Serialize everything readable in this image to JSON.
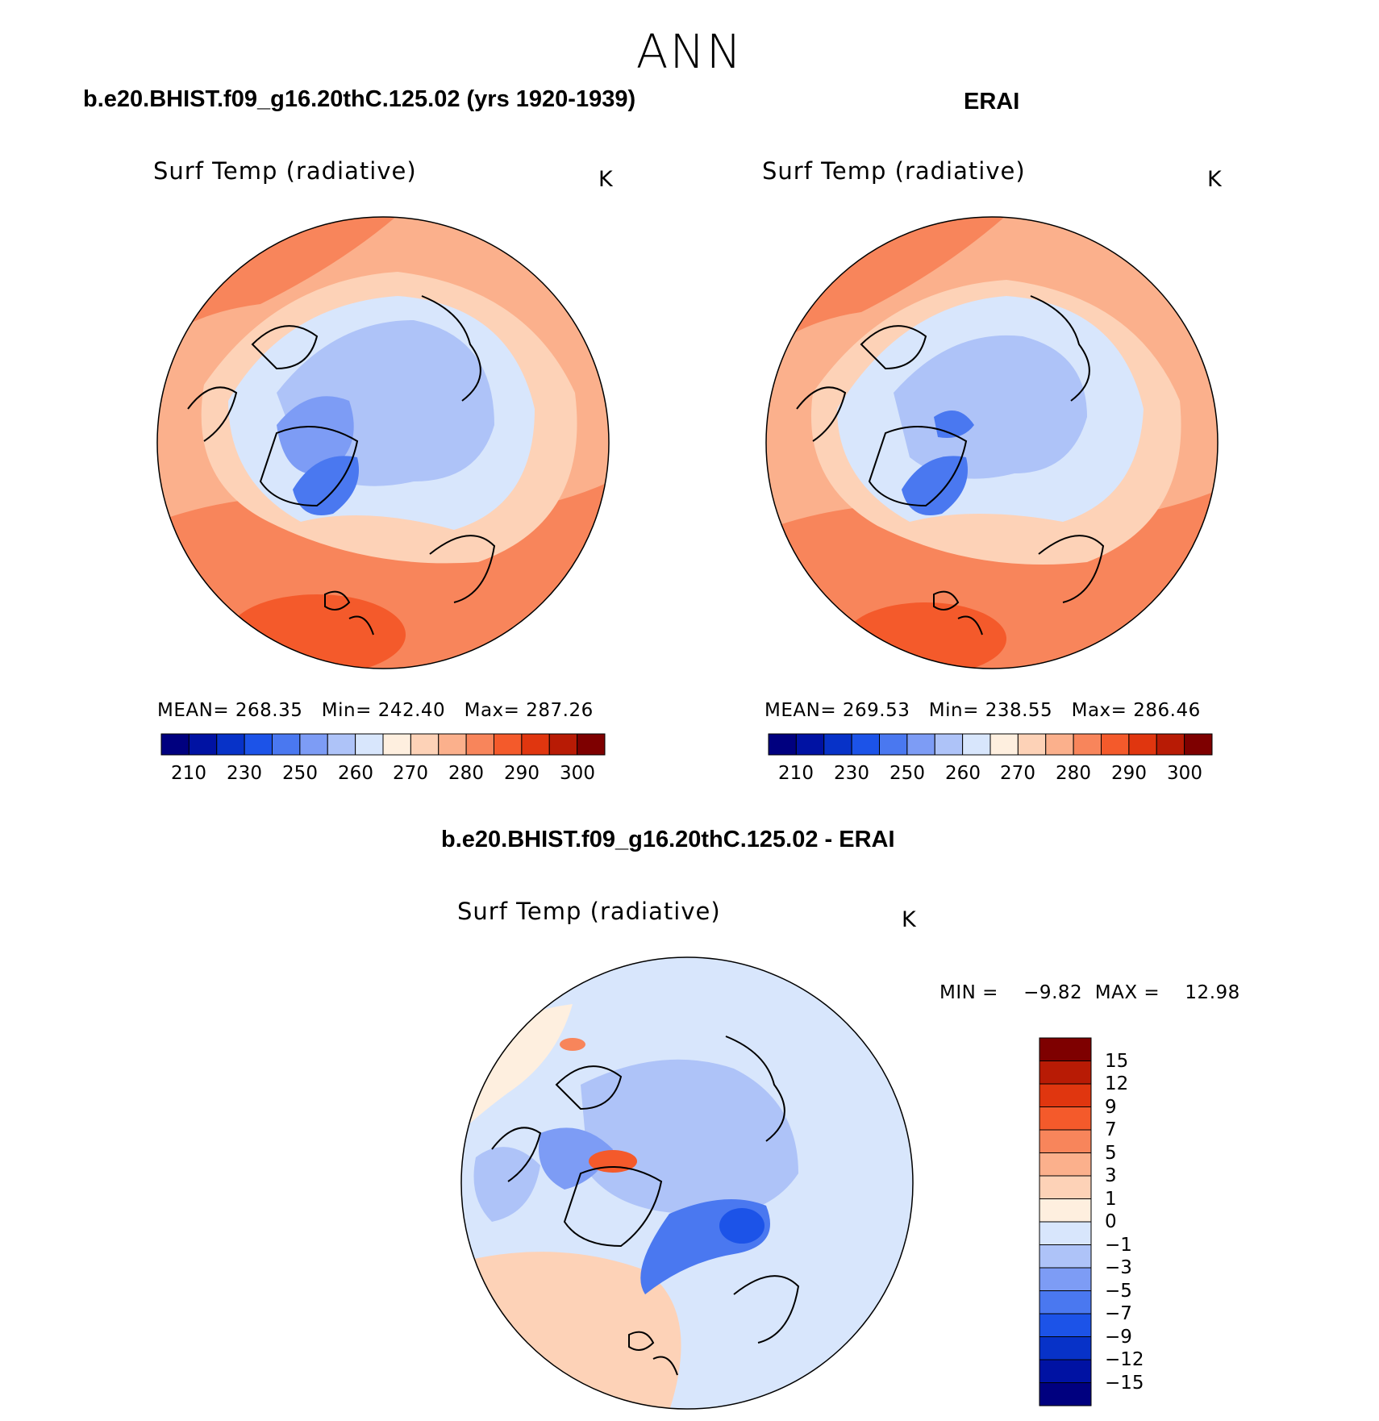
{
  "title": "ANN",
  "panels": [
    {
      "id": "model",
      "heading": "b.e20.BHIST.f09_g16.20thC.125.02 (yrs 1920-1939)",
      "variable": "Surf Temp (radiative)",
      "units": "K",
      "stats": "MEAN= 268.35   Min= 242.40   Max= 287.26",
      "colorbar_ticks": [
        "210",
        "230",
        "250",
        "260",
        "270",
        "280",
        "290",
        "300"
      ]
    },
    {
      "id": "obs",
      "heading": "ERAI",
      "variable": "Surf Temp (radiative)",
      "units": "K",
      "stats": "MEAN= 269.53   Min= 238.55   Max= 286.46",
      "colorbar_ticks": [
        "210",
        "230",
        "250",
        "260",
        "270",
        "280",
        "290",
        "300"
      ]
    },
    {
      "id": "diff",
      "heading": "b.e20.BHIST.f09_g16.20thC.125.02 - ERAI",
      "variable": "Surf Temp (radiative)",
      "units": "K",
      "stats": "MIN =    −9.82  MAX =    12.98",
      "colorbar_ticks": [
        "15",
        "12",
        "9",
        "7",
        "5",
        "3",
        "1",
        "0",
        "−1",
        "−3",
        "−5",
        "−7",
        "−9",
        "−12",
        "−15"
      ]
    }
  ],
  "colors": {
    "abs_scale": [
      "#00007f",
      "#0012a3",
      "#0732c8",
      "#1c53e8",
      "#4a78f0",
      "#7d9cf5",
      "#aec3f8",
      "#d8e6fc",
      "#feefdf",
      "#fdd2b7",
      "#fbb08c",
      "#f8855b",
      "#f45a2b",
      "#e0360f",
      "#b81b05",
      "#7e0000"
    ],
    "diff_scale": [
      "#7e0000",
      "#b81b05",
      "#e0360f",
      "#f45a2b",
      "#f8855b",
      "#fbb08c",
      "#fdd2b7",
      "#feefdf",
      "#d8e6fc",
      "#aec3f8",
      "#7d9cf5",
      "#4a78f0",
      "#1c53e8",
      "#0732c8",
      "#0012a3",
      "#00007f"
    ]
  }
}
